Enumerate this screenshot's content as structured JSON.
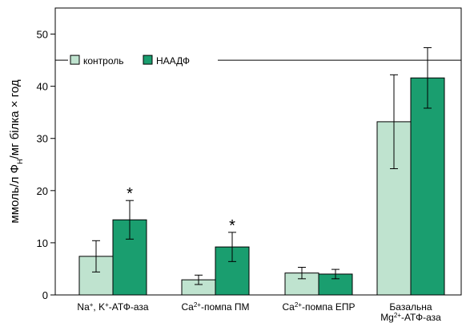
{
  "chart_data": {
    "type": "bar",
    "categories": [
      {
        "id": "na-k",
        "lines": [
          [
            {
              "t": "Na"
            },
            {
              "t": "+",
              "sup": true
            },
            {
              "t": ", K"
            },
            {
              "t": "+",
              "sup": true
            },
            {
              "t": "-АТФ-аза"
            }
          ]
        ]
      },
      {
        "id": "ca-pm",
        "lines": [
          [
            {
              "t": "Ca"
            },
            {
              "t": "2+",
              "sup": true
            },
            {
              "t": "-помпа ПМ"
            }
          ]
        ]
      },
      {
        "id": "ca-epr",
        "lines": [
          [
            {
              "t": "Ca"
            },
            {
              "t": "2+",
              "sup": true
            },
            {
              "t": "-помпа ЕПР"
            }
          ]
        ]
      },
      {
        "id": "mg",
        "lines": [
          [
            {
              "t": "Базальна"
            }
          ],
          [
            {
              "t": "Mg"
            },
            {
              "t": "2+",
              "sup": true
            },
            {
              "t": "-АТФ-аза"
            }
          ]
        ]
      }
    ],
    "series": [
      {
        "name": "контроль",
        "color": "#bfe3cf",
        "values": [
          7.4,
          2.9,
          4.2,
          33.2
        ],
        "errors": [
          3.0,
          0.9,
          1.1,
          9.0
        ],
        "significant": [
          false,
          false,
          false,
          false
        ]
      },
      {
        "name": "НААДФ",
        "color": "#1a9e6f",
        "values": [
          14.4,
          9.2,
          4.0,
          41.6
        ],
        "errors": [
          3.7,
          2.8,
          0.9,
          5.8
        ],
        "significant": [
          true,
          true,
          false,
          false
        ]
      }
    ],
    "ylabel_parts": [
      {
        "t": "ммоль/л Ф"
      },
      {
        "t": "Н",
        "sub": true
      },
      {
        "t": "/мг білка × год"
      }
    ],
    "ylim": [
      0,
      55
    ],
    "yticks": [
      0,
      10,
      20,
      30,
      40,
      50
    ],
    "legend": {
      "placement": "top-left"
    },
    "significance_marker": "*",
    "grid": false
  }
}
